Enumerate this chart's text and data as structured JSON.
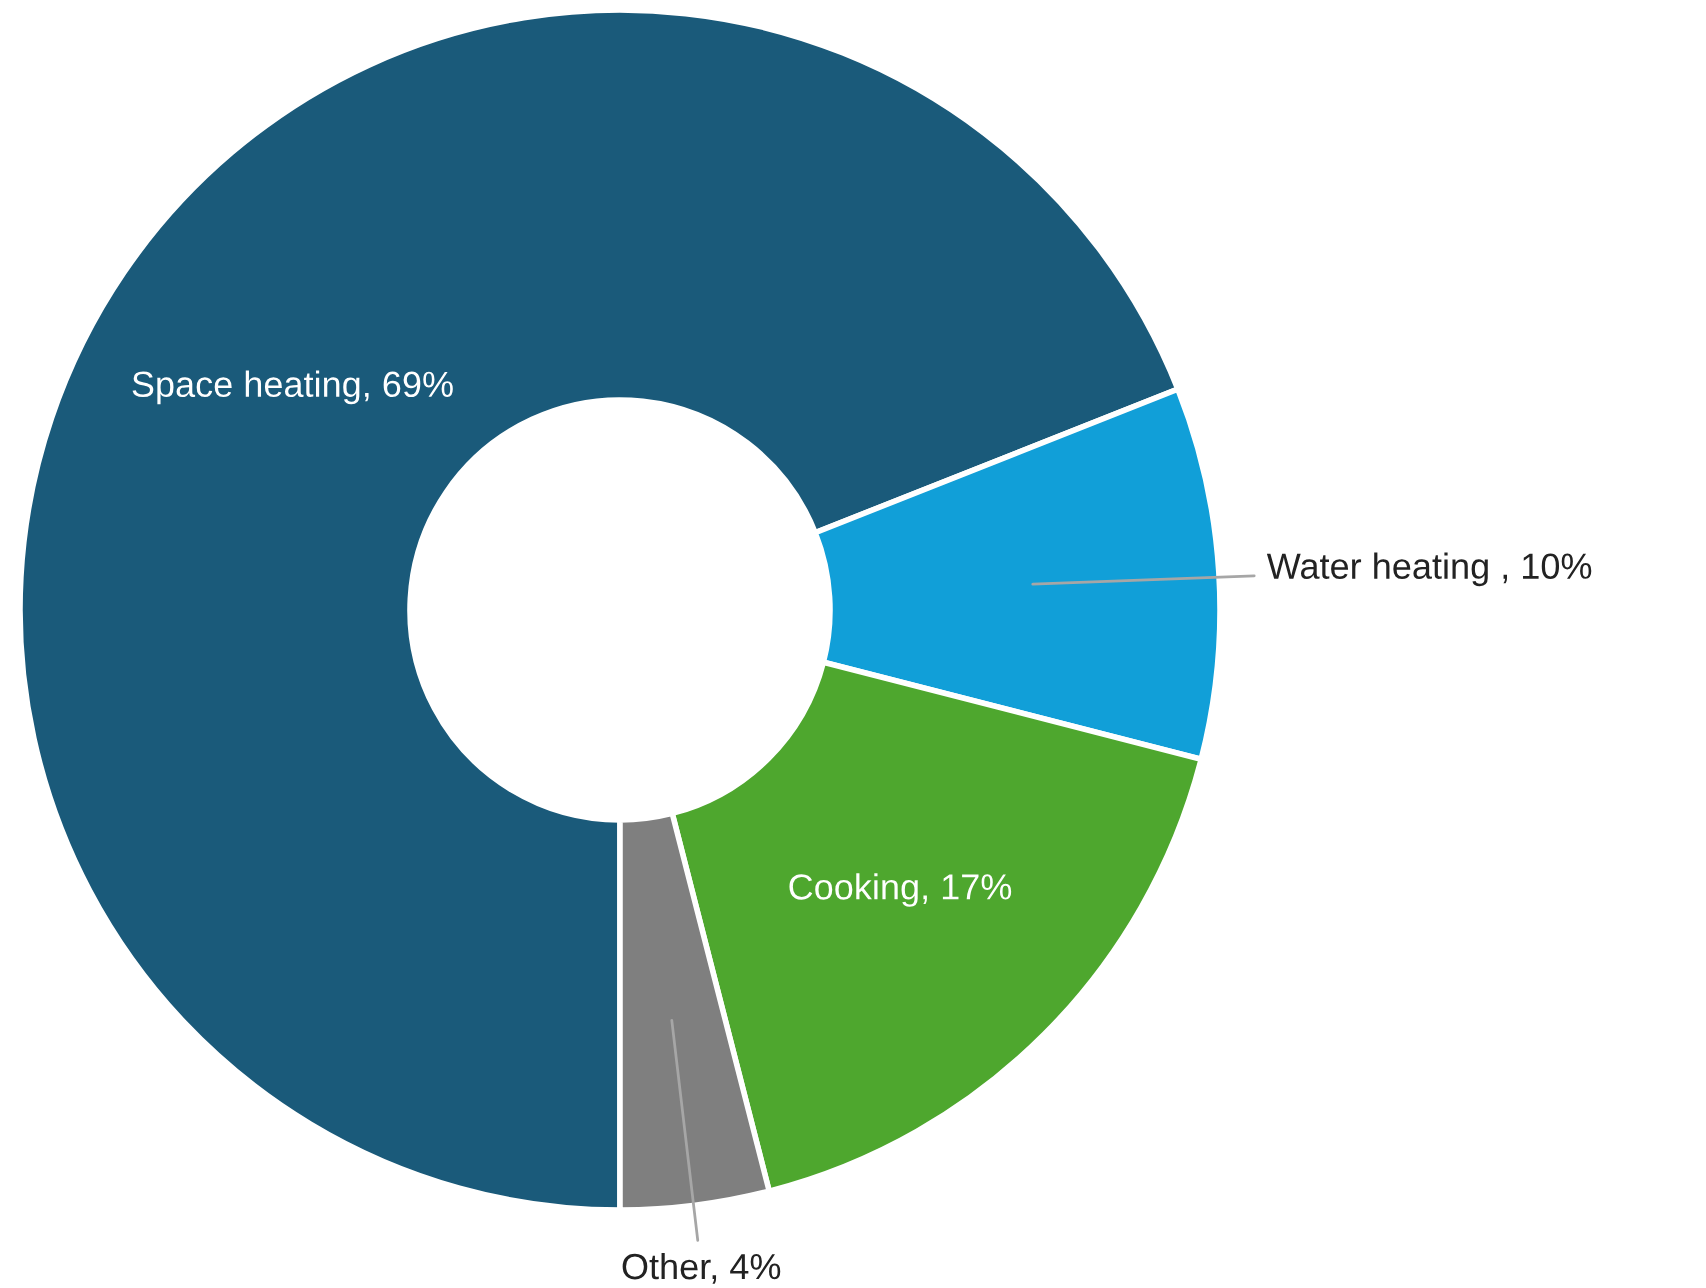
{
  "chart_data": {
    "type": "donut",
    "categories": [
      "Space heating",
      "Water heating ",
      "Cooking",
      "Other"
    ],
    "values": [
      69,
      10,
      17,
      4
    ],
    "value_labels": [
      "69%",
      "10%",
      "17%",
      "4%"
    ],
    "colors": [
      "#1a5a7a",
      "#119fd8",
      "#4ea72e",
      "#7f7f7f"
    ],
    "legend": false
  }
}
